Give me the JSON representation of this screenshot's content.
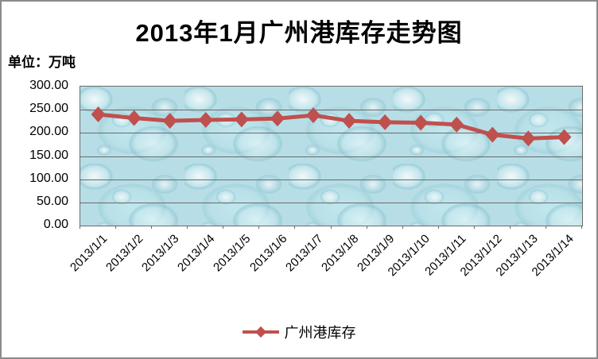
{
  "window": {
    "background": "#ffffff",
    "border_color": "#8a8a8a"
  },
  "title": "2013年1月广州港库存走势图",
  "unit_label": "单位：万吨",
  "legend": {
    "series_label": "广州港库存",
    "position": "bottom"
  },
  "colors": {
    "series": "#C0504D",
    "gridline": "#6a6a6a",
    "plot_border": "#6a6a6a",
    "plot_background_base": "#b7dee6",
    "text": "#000000"
  },
  "chart_data": {
    "type": "line",
    "title": "2013年1月广州港库存走势图",
    "unit": "万吨",
    "categories": [
      "2013/1/1",
      "2013/1/2",
      "2013/1/3",
      "2013/1/4",
      "2013/1/5",
      "2013/1/6",
      "2013/1/7",
      "2013/1/8",
      "2013/1/9",
      "2013/1/10",
      "2013/1/11",
      "2013/1/12",
      "2013/1/13",
      "2013/1/14"
    ],
    "series": [
      {
        "name": "广州港库存",
        "values": [
          240,
          232,
          226,
          228,
          229,
          231,
          238,
          226,
          223,
          222,
          218,
          196,
          188,
          191
        ]
      }
    ],
    "xlabel": "",
    "ylabel": "单位：万吨",
    "ylim": [
      0,
      300
    ],
    "yticks": [
      0,
      50,
      100,
      150,
      200,
      250,
      300
    ],
    "ytick_decimals": 2,
    "grid": "horizontal",
    "legend_position": "bottom",
    "marker": "diamond",
    "plot_background": "water-droplets-texture",
    "x_label_rotation": -45
  }
}
